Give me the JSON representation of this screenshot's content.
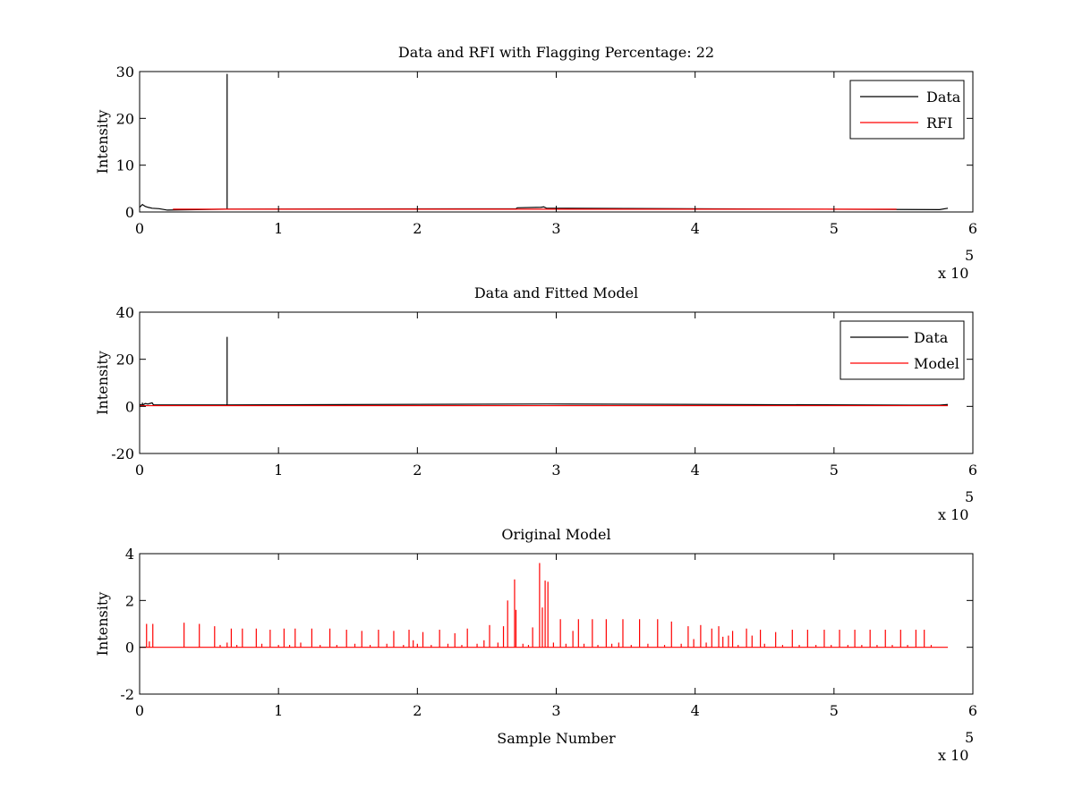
{
  "chart_data": [
    {
      "type": "line",
      "title": "Data and RFI with Flagging Percentage: 22",
      "xlabel": "",
      "ylabel": "Intensity",
      "xlim": [
        0,
        600000
      ],
      "ylim": [
        0,
        30
      ],
      "xticks": [
        "0",
        "1",
        "2",
        "3",
        "4",
        "5",
        "6"
      ],
      "yticks": [
        "0",
        "10",
        "20",
        "30"
      ],
      "x_exponent": "x 10",
      "x_exponent_power": "5",
      "legend": {
        "position": "top-right",
        "entries": [
          "Data",
          "RFI"
        ]
      },
      "series": [
        {
          "name": "Data",
          "color": "#000000",
          "baseline": 0.6,
          "x_end": 582000,
          "points": [
            [
              0,
              1.0
            ],
            [
              2000,
              1.6
            ],
            [
              4000,
              1.2
            ],
            [
              6000,
              1.0
            ],
            [
              9000,
              0.8
            ],
            [
              14000,
              0.7
            ],
            [
              20000,
              0.4
            ],
            [
              62000,
              0.6
            ],
            [
              63000,
              29.5
            ],
            [
              64000,
              0.6
            ],
            [
              271000,
              0.7
            ],
            [
              272000,
              0.9
            ],
            [
              289000,
              1.0
            ],
            [
              291000,
              1.1
            ],
            [
              293000,
              0.8
            ],
            [
              576000,
              0.5
            ],
            [
              582000,
              0.8
            ]
          ]
        },
        {
          "name": "RFI",
          "color": "#ff0000",
          "baseline": 0.6,
          "x_range": [
            24000,
            545000
          ],
          "points": []
        }
      ]
    },
    {
      "type": "line",
      "title": "Data and Fitted Model",
      "xlabel": "",
      "ylabel": "Intensity",
      "xlim": [
        0,
        600000
      ],
      "ylim": [
        -20,
        40
      ],
      "xticks": [
        "0",
        "1",
        "2",
        "3",
        "4",
        "5",
        "6"
      ],
      "yticks": [
        "-20",
        "0",
        "20",
        "40"
      ],
      "x_exponent": "x 10",
      "x_exponent_power": "5",
      "legend": {
        "position": "top-right",
        "entries": [
          "Data",
          "Model"
        ]
      },
      "series": [
        {
          "name": "Data",
          "color": "#000000",
          "baseline": 0.5,
          "x_end": 582000,
          "points": [
            [
              0,
              0.8
            ],
            [
              2000,
              1.6
            ],
            [
              4000,
              1.2
            ],
            [
              6000,
              1.0
            ],
            [
              9000,
              1.5
            ],
            [
              10000,
              0.6
            ],
            [
              62000,
              0.6
            ],
            [
              63000,
              29.5
            ],
            [
              64000,
              0.6
            ],
            [
              293000,
              1.0
            ],
            [
              576000,
              0.5
            ],
            [
              582000,
              0.8
            ]
          ]
        },
        {
          "name": "Model",
          "color": "#ff0000",
          "baseline": 0.3,
          "x_end": 582000,
          "points": []
        }
      ]
    },
    {
      "type": "line",
      "title": "Original Model",
      "xlabel": "Sample Number",
      "ylabel": "Intensity",
      "xlim": [
        0,
        600000
      ],
      "ylim": [
        -2,
        4
      ],
      "xticks": [
        "0",
        "1",
        "2",
        "3",
        "4",
        "5",
        "6"
      ],
      "yticks": [
        "-2",
        "0",
        "2",
        "4"
      ],
      "x_exponent": "x 10",
      "x_exponent_power": "5",
      "series": [
        {
          "name": "Original Model",
          "color": "#ff0000",
          "baseline": 0,
          "x_end": 582000,
          "peaks": [
            [
              5000,
              1.0
            ],
            [
              7000,
              0.25
            ],
            [
              9500,
              1.0
            ],
            [
              32000,
              1.05
            ],
            [
              43000,
              1.0
            ],
            [
              54000,
              0.9
            ],
            [
              63000,
              0.2
            ],
            [
              66000,
              0.8
            ],
            [
              74000,
              0.8
            ],
            [
              84000,
              0.8
            ],
            [
              88000,
              0.15
            ],
            [
              94000,
              0.75
            ],
            [
              104000,
              0.8
            ],
            [
              112000,
              0.8
            ],
            [
              116000,
              0.2
            ],
            [
              124000,
              0.8
            ],
            [
              137000,
              0.8
            ],
            [
              149000,
              0.75
            ],
            [
              160000,
              0.7
            ],
            [
              172000,
              0.75
            ],
            [
              183000,
              0.7
            ],
            [
              194000,
              0.75
            ],
            [
              197000,
              0.3
            ],
            [
              204000,
              0.65
            ],
            [
              216000,
              0.75
            ],
            [
              227000,
              0.6
            ],
            [
              236000,
              0.8
            ],
            [
              248000,
              0.3
            ],
            [
              252000,
              0.95
            ],
            [
              262000,
              0.9
            ],
            [
              265000,
              2.0
            ],
            [
              270000,
              2.9
            ],
            [
              271000,
              1.6
            ],
            [
              283000,
              0.85
            ],
            [
              288000,
              3.6
            ],
            [
              290000,
              1.7
            ],
            [
              292000,
              2.85
            ],
            [
              294000,
              2.8
            ],
            [
              303000,
              1.2
            ],
            [
              312000,
              0.7
            ],
            [
              316000,
              1.2
            ],
            [
              326000,
              1.2
            ],
            [
              336000,
              1.2
            ],
            [
              345000,
              0.2
            ],
            [
              348000,
              1.2
            ],
            [
              360000,
              1.2
            ],
            [
              373000,
              1.2
            ],
            [
              383000,
              1.1
            ],
            [
              395000,
              0.9
            ],
            [
              399000,
              0.35
            ],
            [
              404000,
              0.95
            ],
            [
              412000,
              0.8
            ],
            [
              417000,
              0.9
            ],
            [
              420000,
              0.45
            ],
            [
              424000,
              0.5
            ],
            [
              427000,
              0.7
            ],
            [
              437000,
              0.8
            ],
            [
              441000,
              0.5
            ],
            [
              447000,
              0.75
            ],
            [
              458000,
              0.65
            ],
            [
              470000,
              0.75
            ],
            [
              481000,
              0.75
            ],
            [
              493000,
              0.75
            ],
            [
              504000,
              0.75
            ],
            [
              515000,
              0.75
            ],
            [
              526000,
              0.75
            ],
            [
              537000,
              0.75
            ],
            [
              548000,
              0.75
            ],
            [
              559000,
              0.75
            ],
            [
              565000,
              0.75
            ]
          ],
          "small_peaks": [
            [
              58000,
              0.1
            ],
            [
              70000,
              0.1
            ],
            [
              100000,
              0.1
            ],
            [
              108000,
              0.1
            ],
            [
              130000,
              0.1
            ],
            [
              142000,
              0.1
            ],
            [
              155000,
              0.15
            ],
            [
              166000,
              0.1
            ],
            [
              178000,
              0.15
            ],
            [
              190000,
              0.1
            ],
            [
              200000,
              0.15
            ],
            [
              210000,
              0.1
            ],
            [
              222000,
              0.15
            ],
            [
              232000,
              0.1
            ],
            [
              243000,
              0.15
            ],
            [
              258000,
              0.2
            ],
            [
              276000,
              0.15
            ],
            [
              280000,
              0.1
            ],
            [
              298000,
              0.2
            ],
            [
              307000,
              0.15
            ],
            [
              320000,
              0.15
            ],
            [
              330000,
              0.1
            ],
            [
              340000,
              0.15
            ],
            [
              354000,
              0.1
            ],
            [
              366000,
              0.15
            ],
            [
              378000,
              0.1
            ],
            [
              390000,
              0.15
            ],
            [
              408000,
              0.2
            ],
            [
              431000,
              0.1
            ],
            [
              450000,
              0.15
            ],
            [
              463000,
              0.1
            ],
            [
              475000,
              0.1
            ],
            [
              487000,
              0.1
            ],
            [
              498000,
              0.1
            ],
            [
              510000,
              0.1
            ],
            [
              520000,
              0.1
            ],
            [
              531000,
              0.1
            ],
            [
              542000,
              0.1
            ],
            [
              553000,
              0.1
            ],
            [
              570000,
              0.1
            ]
          ]
        }
      ]
    }
  ]
}
